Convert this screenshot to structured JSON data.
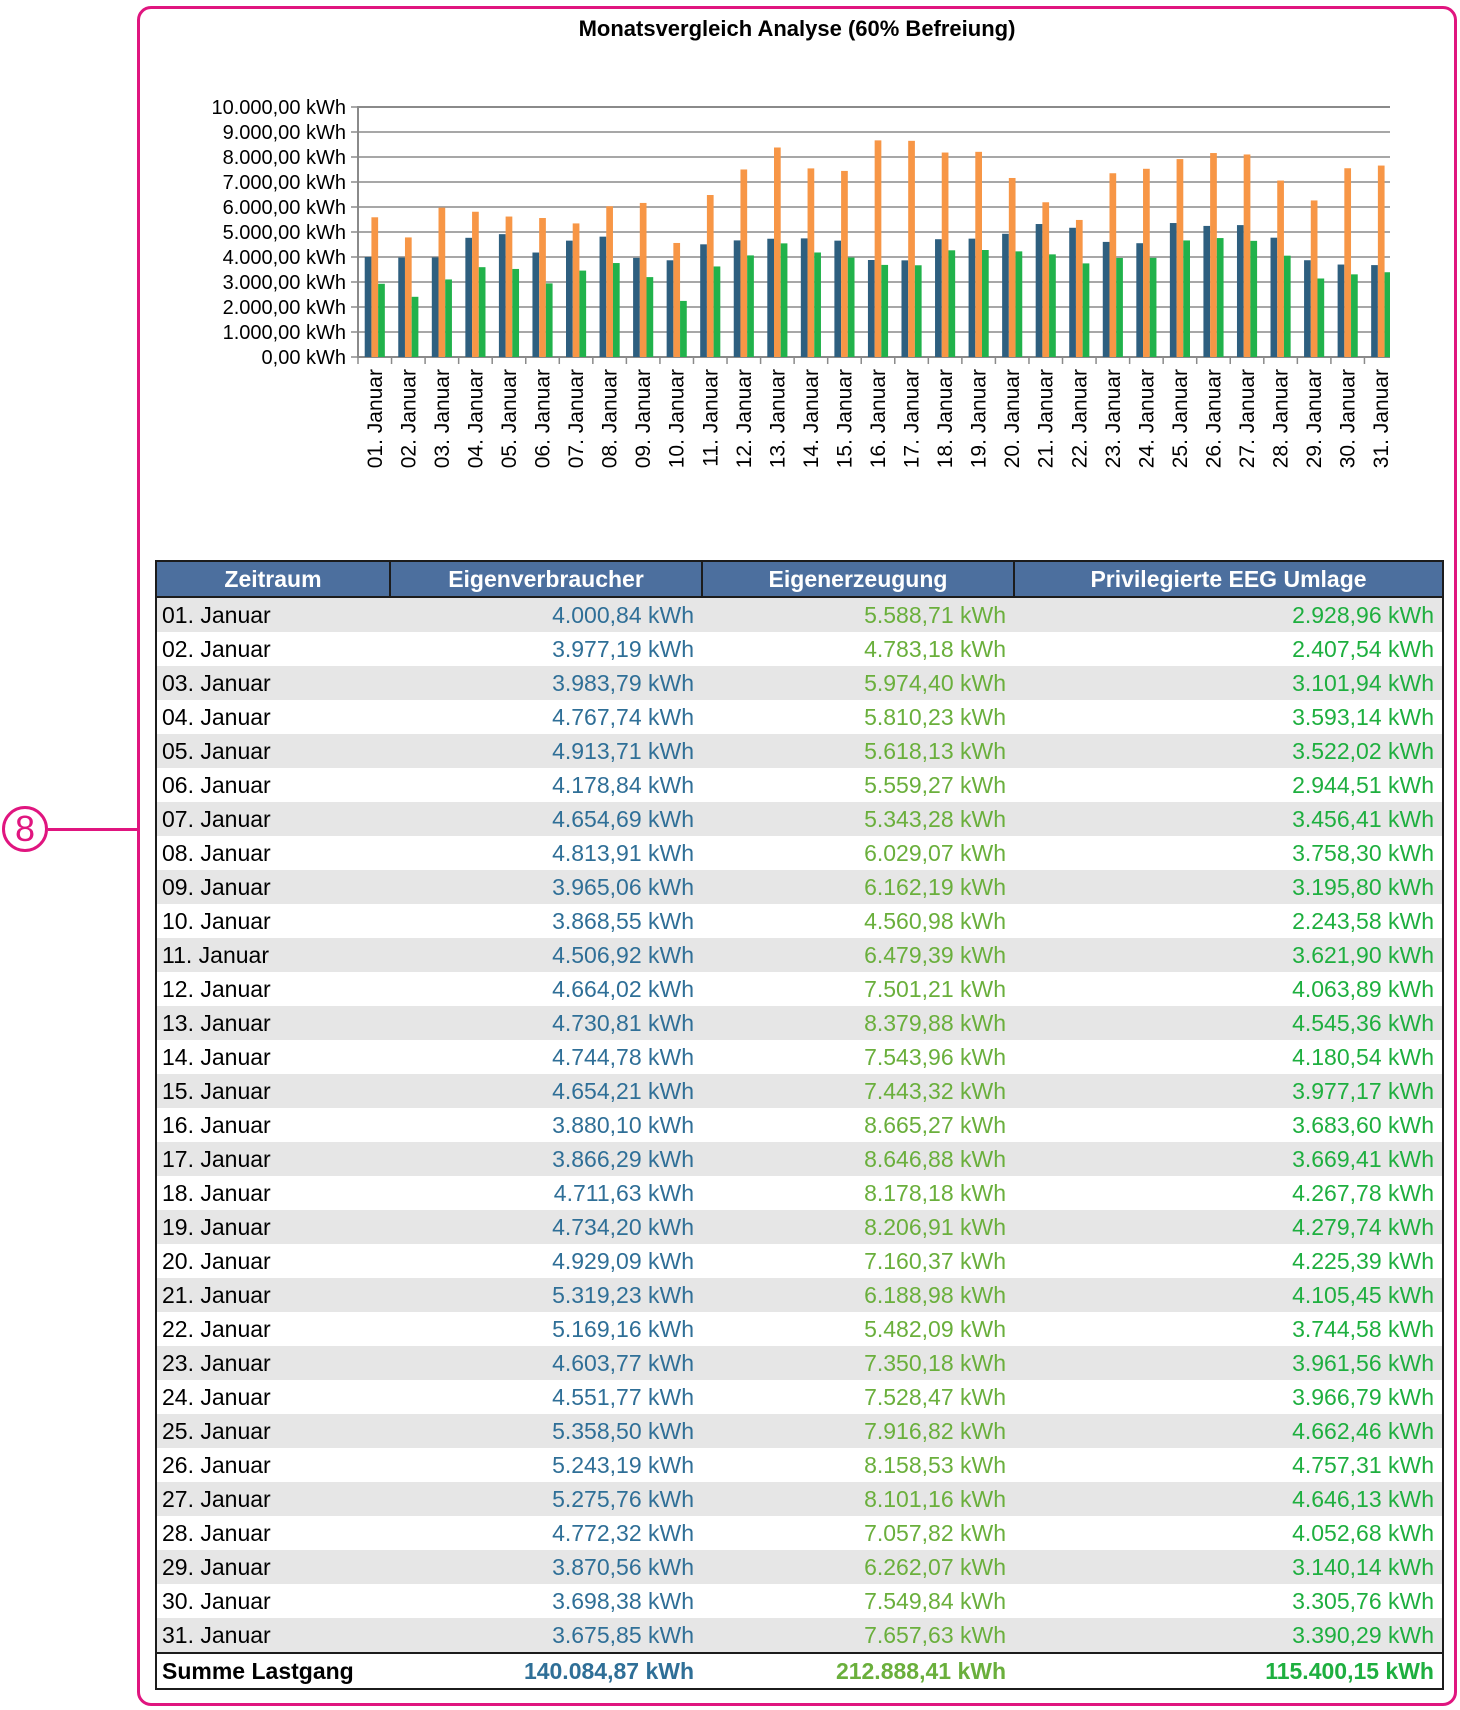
{
  "callout": {
    "number": "8"
  },
  "chart_data": {
    "type": "bar",
    "title": "Monatsvergleich Analyse (60% Befreiung)",
    "ylim": [
      0,
      10000
    ],
    "y_ticks": [
      "0,00 kWh",
      "1.000,00 kWh",
      "2.000,00 kWh",
      "3.000,00 kWh",
      "4.000,00 kWh",
      "5.000,00 kWh",
      "6.000,00 kWh",
      "7.000,00 kWh",
      "8.000,00 kWh",
      "9.000,00 kWh",
      "10.000,00 kWh"
    ],
    "grid": true,
    "legend": "none",
    "categories": [
      "01. Januar",
      "02. Januar",
      "03. Januar",
      "04. Januar",
      "05. Januar",
      "06. Januar",
      "07. Januar",
      "08. Januar",
      "09. Januar",
      "10. Januar",
      "11. Januar",
      "12. Januar",
      "13. Januar",
      "14. Januar",
      "15. Januar",
      "16. Januar",
      "17. Januar",
      "18. Januar",
      "19. Januar",
      "20. Januar",
      "21. Januar",
      "22. Januar",
      "23. Januar",
      "24. Januar",
      "25. Januar",
      "26. Januar",
      "27. Januar",
      "28. Januar",
      "29. Januar",
      "30. Januar",
      "31. Januar"
    ],
    "series": [
      {
        "color": "#2e5f7f",
        "values": [
          4000.84,
          3977.19,
          3983.79,
          4767.74,
          4913.71,
          4178.84,
          4654.69,
          4813.91,
          3965.06,
          3868.55,
          4506.92,
          4664.02,
          4730.81,
          4744.78,
          4654.21,
          3880.1,
          3866.29,
          4711.63,
          4734.2,
          4929.09,
          5319.23,
          5169.16,
          4603.77,
          4551.77,
          5358.5,
          5243.19,
          5275.76,
          4772.32,
          3870.56,
          3698.38,
          3675.85
        ]
      },
      {
        "color": "#f79646",
        "values": [
          5588.71,
          4783.18,
          5974.4,
          5810.23,
          5618.13,
          5559.27,
          5343.28,
          6029.07,
          6162.19,
          4560.98,
          6479.39,
          7501.21,
          8379.88,
          7543.96,
          7443.32,
          8665.27,
          8646.88,
          8178.18,
          8206.91,
          7160.37,
          6188.98,
          5482.09,
          7350.18,
          7528.47,
          7916.82,
          8158.53,
          8101.16,
          7057.82,
          6262.07,
          7549.84,
          7657.63
        ]
      },
      {
        "color": "#21b24b",
        "values": [
          2928.96,
          2407.54,
          3101.94,
          3593.14,
          3522.02,
          2944.51,
          3456.41,
          3758.3,
          3195.8,
          2243.58,
          3621.9,
          4063.89,
          4545.36,
          4180.54,
          3977.17,
          3683.6,
          3669.41,
          4267.78,
          4279.74,
          4225.39,
          4105.45,
          3744.58,
          3961.56,
          3966.79,
          4662.46,
          4757.31,
          4646.13,
          4052.68,
          3140.14,
          3305.76,
          3390.29
        ]
      }
    ]
  },
  "table": {
    "headers": [
      "Zeitraum",
      "Eigenverbraucher",
      "Eigenerzeugung",
      "Privilegierte EEG Umlage"
    ],
    "rows": [
      [
        "01. Januar",
        "4.000,84 kWh",
        "5.588,71 kWh",
        "2.928,96 kWh"
      ],
      [
        "02. Januar",
        "3.977,19 kWh",
        "4.783,18 kWh",
        "2.407,54 kWh"
      ],
      [
        "03. Januar",
        "3.983,79 kWh",
        "5.974,40 kWh",
        "3.101,94 kWh"
      ],
      [
        "04. Januar",
        "4.767,74 kWh",
        "5.810,23 kWh",
        "3.593,14 kWh"
      ],
      [
        "05. Januar",
        "4.913,71 kWh",
        "5.618,13 kWh",
        "3.522,02 kWh"
      ],
      [
        "06. Januar",
        "4.178,84 kWh",
        "5.559,27 kWh",
        "2.944,51 kWh"
      ],
      [
        "07. Januar",
        "4.654,69 kWh",
        "5.343,28 kWh",
        "3.456,41 kWh"
      ],
      [
        "08. Januar",
        "4.813,91 kWh",
        "6.029,07 kWh",
        "3.758,30 kWh"
      ],
      [
        "09. Januar",
        "3.965,06 kWh",
        "6.162,19 kWh",
        "3.195,80 kWh"
      ],
      [
        "10. Januar",
        "3.868,55 kWh",
        "4.560,98 kWh",
        "2.243,58 kWh"
      ],
      [
        "11. Januar",
        "4.506,92 kWh",
        "6.479,39 kWh",
        "3.621,90 kWh"
      ],
      [
        "12. Januar",
        "4.664,02 kWh",
        "7.501,21 kWh",
        "4.063,89 kWh"
      ],
      [
        "13. Januar",
        "4.730,81 kWh",
        "8.379,88 kWh",
        "4.545,36 kWh"
      ],
      [
        "14. Januar",
        "4.744,78 kWh",
        "7.543,96 kWh",
        "4.180,54 kWh"
      ],
      [
        "15. Januar",
        "4.654,21 kWh",
        "7.443,32 kWh",
        "3.977,17 kWh"
      ],
      [
        "16. Januar",
        "3.880,10 kWh",
        "8.665,27 kWh",
        "3.683,60 kWh"
      ],
      [
        "17. Januar",
        "3.866,29 kWh",
        "8.646,88 kWh",
        "3.669,41 kWh"
      ],
      [
        "18. Januar",
        "4.711,63 kWh",
        "8.178,18 kWh",
        "4.267,78 kWh"
      ],
      [
        "19. Januar",
        "4.734,20 kWh",
        "8.206,91 kWh",
        "4.279,74 kWh"
      ],
      [
        "20. Januar",
        "4.929,09 kWh",
        "7.160,37 kWh",
        "4.225,39 kWh"
      ],
      [
        "21. Januar",
        "5.319,23 kWh",
        "6.188,98 kWh",
        "4.105,45 kWh"
      ],
      [
        "22. Januar",
        "5.169,16 kWh",
        "5.482,09 kWh",
        "3.744,58 kWh"
      ],
      [
        "23. Januar",
        "4.603,77 kWh",
        "7.350,18 kWh",
        "3.961,56 kWh"
      ],
      [
        "24. Januar",
        "4.551,77 kWh",
        "7.528,47 kWh",
        "3.966,79 kWh"
      ],
      [
        "25. Januar",
        "5.358,50 kWh",
        "7.916,82 kWh",
        "4.662,46 kWh"
      ],
      [
        "26. Januar",
        "5.243,19 kWh",
        "8.158,53 kWh",
        "4.757,31 kWh"
      ],
      [
        "27. Januar",
        "5.275,76 kWh",
        "8.101,16 kWh",
        "4.646,13 kWh"
      ],
      [
        "28. Januar",
        "4.772,32 kWh",
        "7.057,82 kWh",
        "4.052,68 kWh"
      ],
      [
        "29. Januar",
        "3.870,56 kWh",
        "6.262,07 kWh",
        "3.140,14 kWh"
      ],
      [
        "30. Januar",
        "3.698,38 kWh",
        "7.549,84 kWh",
        "3.305,76 kWh"
      ],
      [
        "31. Januar",
        "3.675,85 kWh",
        "7.657,63 kWh",
        "3.390,29 kWh"
      ]
    ],
    "total": [
      "Summe Lastgang",
      "140.084,87 kWh",
      "212.888,41 kWh",
      "115.400,15 kWh"
    ]
  }
}
